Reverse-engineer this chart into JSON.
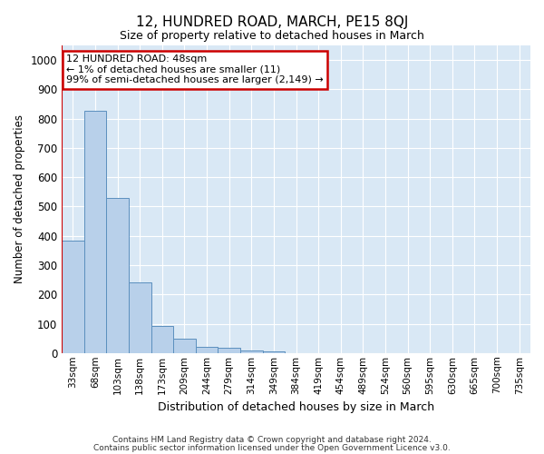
{
  "title": "12, HUNDRED ROAD, MARCH, PE15 8QJ",
  "subtitle": "Size of property relative to detached houses in March",
  "xlabel": "Distribution of detached houses by size in March",
  "ylabel": "Number of detached properties",
  "bar_labels": [
    "33sqm",
    "68sqm",
    "103sqm",
    "138sqm",
    "173sqm",
    "209sqm",
    "244sqm",
    "279sqm",
    "314sqm",
    "349sqm",
    "384sqm",
    "419sqm",
    "454sqm",
    "489sqm",
    "524sqm",
    "560sqm",
    "595sqm",
    "630sqm",
    "665sqm",
    "700sqm",
    "735sqm"
  ],
  "bar_values": [
    383,
    828,
    530,
    240,
    93,
    50,
    22,
    18,
    10,
    5,
    0,
    0,
    0,
    0,
    0,
    0,
    0,
    0,
    0,
    0,
    0
  ],
  "bar_color": "#b8d0ea",
  "bar_edge_color": "#5b8fbe",
  "annotation_text": "12 HUNDRED ROAD: 48sqm\n← 1% of detached houses are smaller (11)\n99% of semi-detached houses are larger (2,149) →",
  "annotation_box_color": "#ffffff",
  "annotation_box_edge_color": "#cc0000",
  "highlight_line_color": "#cc0000",
  "ylim": [
    0,
    1050
  ],
  "yticks": [
    0,
    100,
    200,
    300,
    400,
    500,
    600,
    700,
    800,
    900,
    1000
  ],
  "background_color": "#d9e8f5",
  "grid_color": "#ffffff",
  "fig_bg_color": "#ffffff",
  "footer_line1": "Contains HM Land Registry data © Crown copyright and database right 2024.",
  "footer_line2": "Contains public sector information licensed under the Open Government Licence v3.0."
}
